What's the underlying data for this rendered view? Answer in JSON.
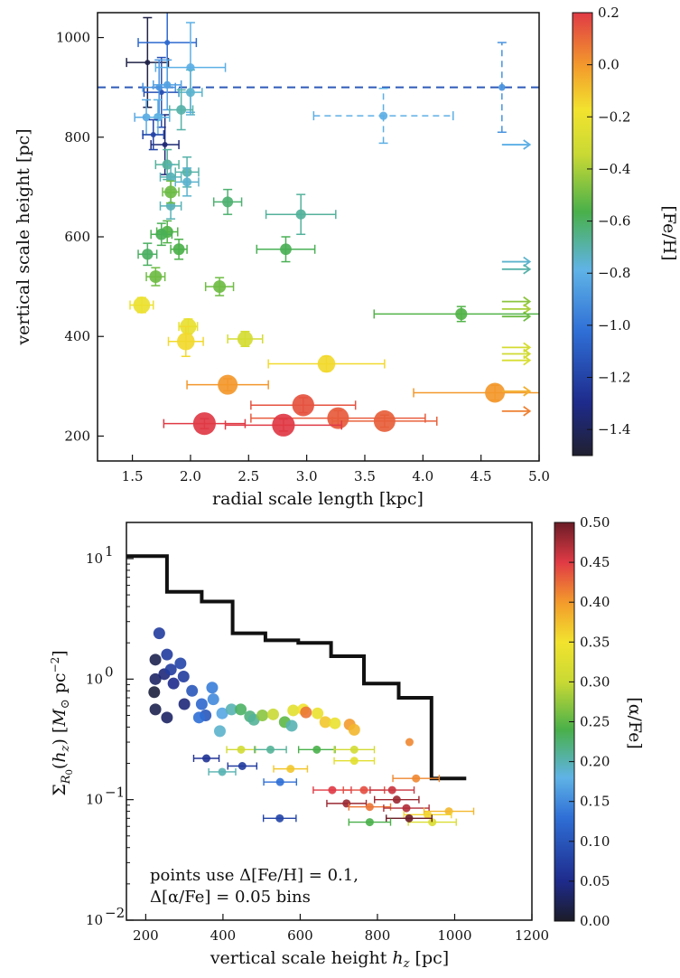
{
  "chart_data": [
    {
      "type": "scatter",
      "xlabel": "radial scale length [kpc]",
      "ylabel": "vertical scale height [pc]",
      "xlim": [
        1.2,
        5.0
      ],
      "ylim": [
        150,
        1050
      ],
      "xticks": [
        "1.5",
        "2.0",
        "2.5",
        "3.0",
        "3.5",
        "4.0",
        "4.5",
        "5.0"
      ],
      "yticks": [
        "200",
        "400",
        "600",
        "800",
        "1000"
      ],
      "grid": false,
      "reference_line": {
        "axis": "y",
        "value": 900,
        "style": "dashed",
        "color": "#2e5ab8"
      },
      "colorbar": {
        "label": "[Fe/H]",
        "range": [
          -1.5,
          0.2
        ],
        "ticks": [
          "0.2",
          "0.0",
          "−0.2",
          "−0.4",
          "−0.6",
          "−0.8",
          "−1.0",
          "−1.2",
          "−1.4"
        ]
      },
      "points": [
        {
          "x": 1.63,
          "y": 950,
          "feh": -1.45,
          "xerr": 0.18,
          "yerr": 90
        },
        {
          "x": 1.8,
          "y": 990,
          "feh": -1.05,
          "xerr": 0.25,
          "yerr": 90
        },
        {
          "x": 1.75,
          "y": 890,
          "feh": -1.15,
          "xerr": 0.15,
          "yerr": 70
        },
        {
          "x": 1.78,
          "y": 785,
          "feh": -1.35,
          "xerr": 0.12,
          "yerr": 60
        },
        {
          "x": 1.73,
          "y": 900,
          "feh": -0.9,
          "xerr": 0.14,
          "yerr": 55
        },
        {
          "x": 1.8,
          "y": 905,
          "feh": -0.85,
          "xerr": 0.12,
          "yerr": 50
        },
        {
          "x": 2.0,
          "y": 940,
          "feh": -0.8,
          "xerr": 0.3,
          "yerr": 90
        },
        {
          "x": 2.0,
          "y": 890,
          "feh": -0.75,
          "xerr": 0.1,
          "yerr": 45
        },
        {
          "x": 1.92,
          "y": 855,
          "feh": -0.7,
          "xerr": 0.1,
          "yerr": 40
        },
        {
          "x": 1.62,
          "y": 840,
          "feh": -0.82,
          "xerr": 0.1,
          "yerr": 35
        },
        {
          "x": 1.72,
          "y": 840,
          "feh": -0.78,
          "xerr": 0.1,
          "yerr": 35
        },
        {
          "x": 1.68,
          "y": 805,
          "feh": -1.2,
          "xerr": 0.09,
          "yerr": 30
        },
        {
          "x": 1.8,
          "y": 745,
          "feh": -0.68,
          "xerr": 0.1,
          "yerr": 30
        },
        {
          "x": 1.83,
          "y": 720,
          "feh": -0.72,
          "xerr": 0.09,
          "yerr": 25
        },
        {
          "x": 1.97,
          "y": 730,
          "feh": -0.7,
          "xerr": 0.1,
          "yerr": 30
        },
        {
          "x": 1.97,
          "y": 710,
          "feh": -0.75,
          "xerr": 0.1,
          "yerr": 28
        },
        {
          "x": 1.83,
          "y": 662,
          "feh": -0.72,
          "xerr": 0.09,
          "yerr": 26
        },
        {
          "x": 1.83,
          "y": 690,
          "feh": -0.5,
          "xerr": 0.07,
          "yerr": 22
        },
        {
          "x": 1.8,
          "y": 610,
          "feh": -0.55,
          "xerr": 0.09,
          "yerr": 22
        },
        {
          "x": 1.75,
          "y": 605,
          "feh": -0.58,
          "xerr": 0.09,
          "yerr": 22
        },
        {
          "x": 1.63,
          "y": 565,
          "feh": -0.6,
          "xerr": 0.08,
          "yerr": 22
        },
        {
          "x": 1.9,
          "y": 575,
          "feh": -0.56,
          "xerr": 0.07,
          "yerr": 20
        },
        {
          "x": 1.7,
          "y": 520,
          "feh": -0.5,
          "xerr": 0.08,
          "yerr": 18
        },
        {
          "x": 1.58,
          "y": 463,
          "feh": -0.2,
          "xerr": 0.1,
          "yerr": 15
        },
        {
          "x": 2.25,
          "y": 500,
          "feh": -0.5,
          "xerr": 0.12,
          "yerr": 18
        },
        {
          "x": 2.32,
          "y": 670,
          "feh": -0.62,
          "xerr": 0.12,
          "yerr": 25
        },
        {
          "x": 2.95,
          "y": 645,
          "feh": -0.68,
          "xerr": 0.3,
          "yerr": 40
        },
        {
          "x": 2.82,
          "y": 575,
          "feh": -0.58,
          "xerr": 0.25,
          "yerr": 25
        },
        {
          "x": 1.98,
          "y": 420,
          "feh": -0.22,
          "xerr": 0.08,
          "yerr": 15
        },
        {
          "x": 1.96,
          "y": 390,
          "feh": -0.15,
          "xerr": 0.15,
          "yerr": 30
        },
        {
          "x": 2.47,
          "y": 395,
          "feh": -0.3,
          "xerr": 0.15,
          "yerr": 15
        },
        {
          "x": 3.17,
          "y": 345,
          "feh": -0.15,
          "xerr": 0.5,
          "yerr": 15
        },
        {
          "x": 2.32,
          "y": 303,
          "feh": 0.0,
          "xerr": 0.35,
          "yerr": 12
        },
        {
          "x": 2.97,
          "y": 262,
          "feh": 0.15,
          "xerr": 0.45,
          "yerr": 15
        },
        {
          "x": 3.27,
          "y": 236,
          "feh": 0.13,
          "xerr": 0.75,
          "yerr": 15
        },
        {
          "x": 3.67,
          "y": 230,
          "feh": 0.12,
          "xerr": 0.45,
          "yerr": 12
        },
        {
          "x": 2.12,
          "y": 225,
          "feh": 0.2,
          "xerr": 0.35,
          "yerr": 10
        },
        {
          "x": 2.8,
          "y": 222,
          "feh": 0.2,
          "xerr": 0.5,
          "yerr": 12
        },
        {
          "x": 4.33,
          "y": 445,
          "feh": -0.55,
          "xerr": 0.75,
          "yerr": 15
        },
        {
          "x": 4.62,
          "y": 287,
          "feh": 0.0,
          "xerr": 0.7,
          "yerr": 15
        },
        {
          "x": 3.66,
          "y": 843,
          "feh": -0.8,
          "xerr": 0.6,
          "yerr": 55,
          "dashed": true
        },
        {
          "x": 4.68,
          "y": 900,
          "feh": -0.9,
          "xerr": 0.0,
          "yerr": 90,
          "dashed": true
        }
      ],
      "lower_limits": [
        {
          "y": 785,
          "feh": -0.8
        },
        {
          "y": 550,
          "feh": -0.75
        },
        {
          "y": 535,
          "feh": -0.7
        },
        {
          "y": 470,
          "feh": -0.45
        },
        {
          "y": 455,
          "feh": -0.4
        },
        {
          "y": 440,
          "feh": -0.5
        },
        {
          "y": 378,
          "feh": -0.3
        },
        {
          "y": 365,
          "feh": -0.32
        },
        {
          "y": 352,
          "feh": -0.28
        },
        {
          "y": 290,
          "feh": -0.05
        },
        {
          "y": 250,
          "feh": 0.05
        }
      ]
    },
    {
      "type": "scatter",
      "xlabel": "vertical scale height h_z [pc]",
      "ylabel": "Σ_R0(h_z) [M⊙ pc⁻²]",
      "xlim": [
        150,
        1200
      ],
      "ylim_log10": [
        -2,
        1.3
      ],
      "yscale": "log",
      "xticks": [
        "200",
        "400",
        "600",
        "800",
        "1000",
        "1200"
      ],
      "yticks": [
        "10−2",
        "10−1",
        "10⁰",
        "10¹"
      ],
      "grid": false,
      "step_line": [
        {
          "x": 150,
          "y": 10.5
        },
        {
          "x": 255,
          "y": 10.5
        },
        {
          "x": 255,
          "y": 5.3
        },
        {
          "x": 345,
          "y": 5.3
        },
        {
          "x": 345,
          "y": 4.4
        },
        {
          "x": 425,
          "y": 4.4
        },
        {
          "x": 425,
          "y": 2.4
        },
        {
          "x": 510,
          "y": 2.4
        },
        {
          "x": 510,
          "y": 2.1
        },
        {
          "x": 595,
          "y": 2.1
        },
        {
          "x": 595,
          "y": 2.0
        },
        {
          "x": 680,
          "y": 2.0
        },
        {
          "x": 680,
          "y": 1.55
        },
        {
          "x": 765,
          "y": 1.55
        },
        {
          "x": 765,
          "y": 0.92
        },
        {
          "x": 855,
          "y": 0.92
        },
        {
          "x": 855,
          "y": 0.7
        },
        {
          "x": 940,
          "y": 0.7
        },
        {
          "x": 940,
          "y": 0.15
        },
        {
          "x": 1030,
          "y": 0.15
        }
      ],
      "colorbar": {
        "label": "[α/Fe]",
        "range": [
          0.0,
          0.5
        ],
        "ticks": [
          "0.50",
          "0.45",
          "0.40",
          "0.35",
          "0.30",
          "0.25",
          "0.20",
          "0.15",
          "0.10",
          "0.05",
          "0.00"
        ]
      },
      "points": [
        {
          "x": 235,
          "y": 2.4,
          "afe": 0.07
        },
        {
          "x": 225,
          "y": 1.45,
          "afe": 0.02
        },
        {
          "x": 225,
          "y": 1.0,
          "afe": 0.03
        },
        {
          "x": 222,
          "y": 0.78,
          "afe": 0.01
        },
        {
          "x": 225,
          "y": 0.56,
          "afe": 0.02
        },
        {
          "x": 255,
          "y": 0.48,
          "afe": 0.03
        },
        {
          "x": 248,
          "y": 1.1,
          "afe": 0.04
        },
        {
          "x": 255,
          "y": 1.6,
          "afe": 0.07
        },
        {
          "x": 265,
          "y": 1.2,
          "afe": 0.07
        },
        {
          "x": 272,
          "y": 0.92,
          "afe": 0.05
        },
        {
          "x": 290,
          "y": 1.35,
          "afe": 0.08
        },
        {
          "x": 298,
          "y": 1.05,
          "afe": 0.07
        },
        {
          "x": 320,
          "y": 0.8,
          "afe": 0.1
        },
        {
          "x": 300,
          "y": 0.62,
          "afe": 0.04
        },
        {
          "x": 345,
          "y": 0.62,
          "afe": 0.12
        },
        {
          "x": 355,
          "y": 0.5,
          "afe": 0.1
        },
        {
          "x": 338,
          "y": 0.48,
          "afe": 0.13
        },
        {
          "x": 372,
          "y": 0.85,
          "afe": 0.14
        },
        {
          "x": 375,
          "y": 0.68,
          "afe": 0.15
        },
        {
          "x": 398,
          "y": 0.52,
          "afe": 0.17
        },
        {
          "x": 392,
          "y": 0.37,
          "afe": 0.19
        },
        {
          "x": 422,
          "y": 0.56,
          "afe": 0.2
        },
        {
          "x": 446,
          "y": 0.56,
          "afe": 0.23
        },
        {
          "x": 470,
          "y": 0.49,
          "afe": 0.22
        },
        {
          "x": 480,
          "y": 0.46,
          "afe": 0.21
        },
        {
          "x": 502,
          "y": 0.5,
          "afe": 0.27
        },
        {
          "x": 530,
          "y": 0.51,
          "afe": 0.3
        },
        {
          "x": 560,
          "y": 0.44,
          "afe": 0.25
        },
        {
          "x": 578,
          "y": 0.41,
          "afe": 0.2
        },
        {
          "x": 582,
          "y": 0.55,
          "afe": 0.33
        },
        {
          "x": 608,
          "y": 0.56,
          "afe": 0.35
        },
        {
          "x": 615,
          "y": 0.53,
          "afe": 0.42
        },
        {
          "x": 645,
          "y": 0.52,
          "afe": 0.34
        },
        {
          "x": 665,
          "y": 0.44,
          "afe": 0.37
        },
        {
          "x": 690,
          "y": 0.43,
          "afe": 0.34
        },
        {
          "x": 728,
          "y": 0.42,
          "afe": 0.4
        },
        {
          "x": 740,
          "y": 0.38,
          "afe": 0.38
        },
        {
          "x": 357,
          "y": 0.22,
          "afe": 0.06
        },
        {
          "x": 398,
          "y": 0.17,
          "afe": 0.2
        },
        {
          "x": 450,
          "y": 0.19,
          "afe": 0.07
        },
        {
          "x": 447,
          "y": 0.26,
          "afe": 0.31
        },
        {
          "x": 523,
          "y": 0.26,
          "afe": 0.21
        },
        {
          "x": 548,
          "y": 0.14,
          "afe": 0.13
        },
        {
          "x": 575,
          "y": 0.18,
          "afe": 0.37
        },
        {
          "x": 643,
          "y": 0.26,
          "afe": 0.24
        },
        {
          "x": 740,
          "y": 0.26,
          "afe": 0.31
        },
        {
          "x": 740,
          "y": 0.21,
          "afe": 0.33
        },
        {
          "x": 883,
          "y": 0.3,
          "afe": 0.41
        },
        {
          "x": 547,
          "y": 0.07,
          "afe": 0.08
        },
        {
          "x": 683,
          "y": 0.12,
          "afe": 0.45
        },
        {
          "x": 720,
          "y": 0.093,
          "afe": 0.48
        },
        {
          "x": 765,
          "y": 0.12,
          "afe": 0.44
        },
        {
          "x": 780,
          "y": 0.087,
          "afe": 0.42
        },
        {
          "x": 838,
          "y": 0.12,
          "afe": 0.46
        },
        {
          "x": 850,
          "y": 0.1,
          "afe": 0.48
        },
        {
          "x": 875,
          "y": 0.085,
          "afe": 0.47
        },
        {
          "x": 900,
          "y": 0.15,
          "afe": 0.41
        },
        {
          "x": 985,
          "y": 0.08,
          "afe": 0.38
        },
        {
          "x": 930,
          "y": 0.075,
          "afe": 0.36
        },
        {
          "x": 942,
          "y": 0.065,
          "afe": 0.32
        },
        {
          "x": 882,
          "y": 0.07,
          "afe": 0.5
        },
        {
          "x": 780,
          "y": 0.065,
          "afe": 0.24
        }
      ],
      "annotation": [
        "points use Δ[Fe/H] = 0.1,",
        "Δ[α/Fe] = 0.05 bins"
      ]
    }
  ]
}
